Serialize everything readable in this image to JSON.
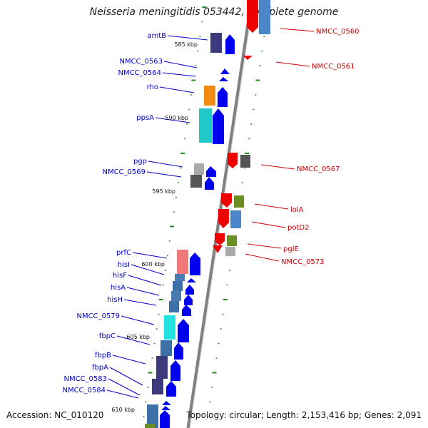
{
  "title": "Neisseria meningitidis 053442, complete genome",
  "accession": "Accession: NC_010120",
  "stats": "Topology: circular; Length: 2,153,416 bp; Genes: 2,091",
  "colors": {
    "forward_label": "#0000cc",
    "reverse_label": "#cc0000",
    "forward_arrow": "#0000ee",
    "reverse_arrow": "#ee0000",
    "backbone": "#808080",
    "tick": "#228b22"
  },
  "kbp_marks": [
    "585 kbp",
    "590 kbp",
    "595 kbp",
    "600 kbp",
    "605 kbp",
    "610 kbp"
  ],
  "forward_genes": [
    "amtB",
    "NMCC_0563",
    "NMCC_0564",
    "rho",
    "ppsA",
    "pgp",
    "NMCC_0569",
    "prfC",
    "hisI",
    "hisF",
    "hisA",
    "hisH",
    "NMCC_0579",
    "fbpC",
    "fbpB",
    "fbpA",
    "NMCC_0583",
    "NMCC_0584"
  ],
  "reverse_genes": [
    "NMCC_0560",
    "NMCC_0561",
    "NMCC_0567",
    "lolA",
    "potD2",
    "pglE",
    "NMCC_0573"
  ]
}
